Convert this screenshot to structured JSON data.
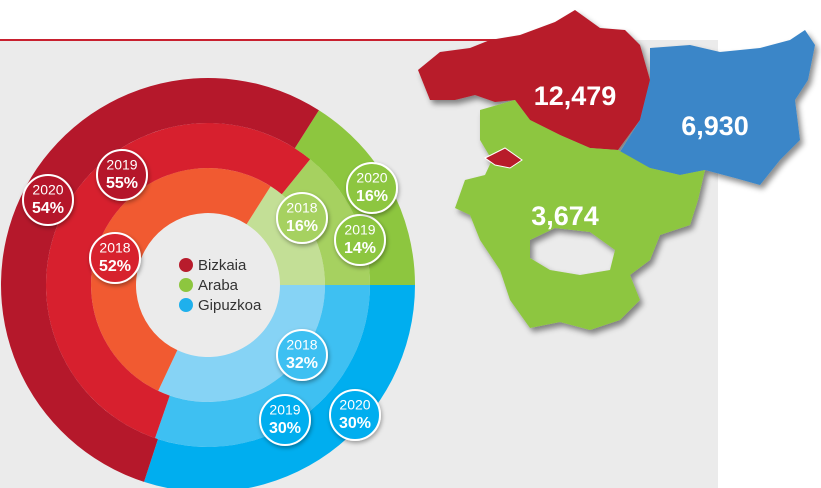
{
  "chart_data": {
    "type": "donut",
    "categories": [
      "2018",
      "2019",
      "2020"
    ],
    "series": [
      {
        "name": "Bizkaia",
        "color": "#b81c2c",
        "colors": [
          "#f15a31",
          "#d7202e",
          "#b5182b"
        ],
        "values": [
          52,
          55,
          54
        ],
        "value_labels": [
          "52%",
          "55%",
          "54%"
        ]
      },
      {
        "name": "Araba",
        "color": "#8dc63f",
        "colors": [
          "#c3df96",
          "#a6d160",
          "#8dc63f"
        ],
        "values": [
          16,
          14,
          16
        ],
        "value_labels": [
          "16%",
          "14%",
          "16%"
        ]
      },
      {
        "name": "Gipuzkoa",
        "color": "#1fb0ec",
        "colors": [
          "#86d3f5",
          "#3ec0f2",
          "#00aeef"
        ],
        "values": [
          32,
          30,
          30
        ],
        "value_labels": [
          "32%",
          "30%",
          "30%"
        ]
      }
    ]
  },
  "map": {
    "values": [
      12479,
      6930,
      3674
    ],
    "value_labels": [
      "12,479",
      "6,930",
      "3,674"
    ]
  }
}
